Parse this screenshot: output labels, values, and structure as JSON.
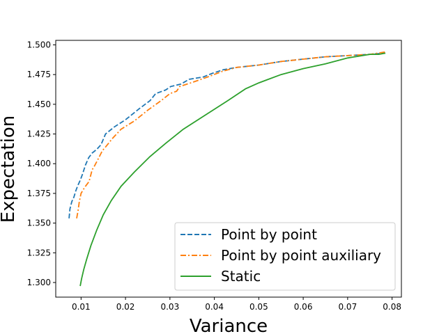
{
  "chart_data": {
    "type": "line",
    "title": "",
    "xlabel": "Variance",
    "ylabel": "Expectation",
    "xlim": [
      0.0043,
      0.0821
    ],
    "ylim": [
      1.2877,
      1.5038
    ],
    "xticks": [
      0.01,
      0.02,
      0.03,
      0.04,
      0.05,
      0.06,
      0.07,
      0.08
    ],
    "xtick_labels": [
      "0.01",
      "0.02",
      "0.03",
      "0.04",
      "0.05",
      "0.06",
      "0.07",
      "0.08"
    ],
    "yticks": [
      1.3,
      1.325,
      1.35,
      1.375,
      1.4,
      1.425,
      1.45,
      1.475,
      1.5
    ],
    "ytick_labels": [
      "1.300",
      "1.325",
      "1.350",
      "1.375",
      "1.400",
      "1.425",
      "1.450",
      "1.475",
      "1.500"
    ],
    "grid": false,
    "legend_position": "bottom-right",
    "series": [
      {
        "name": "Point by point",
        "color": "#1f77b4",
        "style": "dashed",
        "points": [
          [
            0.0073,
            1.354
          ],
          [
            0.0075,
            1.362
          ],
          [
            0.0079,
            1.368
          ],
          [
            0.0084,
            1.372
          ],
          [
            0.0088,
            1.377
          ],
          [
            0.0092,
            1.381
          ],
          [
            0.0098,
            1.386
          ],
          [
            0.0103,
            1.391
          ],
          [
            0.011,
            1.399
          ],
          [
            0.0117,
            1.405
          ],
          [
            0.0125,
            1.409
          ],
          [
            0.0135,
            1.412
          ],
          [
            0.0145,
            1.416
          ],
          [
            0.0155,
            1.425
          ],
          [
            0.0175,
            1.431
          ],
          [
            0.02,
            1.437
          ],
          [
            0.023,
            1.446
          ],
          [
            0.0255,
            1.453
          ],
          [
            0.0268,
            1.459
          ],
          [
            0.029,
            1.462
          ],
          [
            0.0302,
            1.465
          ],
          [
            0.0325,
            1.467
          ],
          [
            0.0343,
            1.471
          ],
          [
            0.0375,
            1.473
          ],
          [
            0.0395,
            1.476
          ],
          [
            0.042,
            1.479
          ],
          [
            0.045,
            1.481
          ],
          [
            0.05,
            1.483
          ],
          [
            0.055,
            1.486
          ],
          [
            0.06,
            1.488
          ],
          [
            0.065,
            1.49
          ],
          [
            0.07,
            1.491
          ],
          [
            0.075,
            1.492
          ],
          [
            0.0785,
            1.493
          ]
        ]
      },
      {
        "name": "Point by point auxiliary",
        "color": "#ff7f0e",
        "style": "dashdot",
        "points": [
          [
            0.009,
            1.354
          ],
          [
            0.0093,
            1.36
          ],
          [
            0.0096,
            1.368
          ],
          [
            0.01,
            1.375
          ],
          [
            0.0108,
            1.38
          ],
          [
            0.0118,
            1.385
          ],
          [
            0.0125,
            1.395
          ],
          [
            0.013,
            1.398
          ],
          [
            0.014,
            1.405
          ],
          [
            0.0148,
            1.411
          ],
          [
            0.0155,
            1.414
          ],
          [
            0.017,
            1.421
          ],
          [
            0.019,
            1.429
          ],
          [
            0.022,
            1.436
          ],
          [
            0.025,
            1.445
          ],
          [
            0.028,
            1.453
          ],
          [
            0.03,
            1.459
          ],
          [
            0.0315,
            1.461
          ],
          [
            0.0322,
            1.465
          ],
          [
            0.0355,
            1.469
          ],
          [
            0.0385,
            1.473
          ],
          [
            0.042,
            1.478
          ],
          [
            0.045,
            1.481
          ],
          [
            0.05,
            1.483
          ],
          [
            0.055,
            1.486
          ],
          [
            0.06,
            1.488
          ],
          [
            0.065,
            1.49
          ],
          [
            0.07,
            1.491
          ],
          [
            0.075,
            1.492
          ],
          [
            0.0785,
            1.494
          ]
        ]
      },
      {
        "name": "Static",
        "color": "#2ca02c",
        "style": "solid",
        "points": [
          [
            0.0098,
            1.297
          ],
          [
            0.0101,
            1.303
          ],
          [
            0.0106,
            1.311
          ],
          [
            0.0113,
            1.32
          ],
          [
            0.0122,
            1.331
          ],
          [
            0.0135,
            1.344
          ],
          [
            0.015,
            1.357
          ],
          [
            0.0168,
            1.369
          ],
          [
            0.019,
            1.381
          ],
          [
            0.022,
            1.393
          ],
          [
            0.0255,
            1.406
          ],
          [
            0.029,
            1.417
          ],
          [
            0.033,
            1.429
          ],
          [
            0.038,
            1.441
          ],
          [
            0.043,
            1.453
          ],
          [
            0.047,
            1.463
          ],
          [
            0.05,
            1.468
          ],
          [
            0.055,
            1.475
          ],
          [
            0.06,
            1.48
          ],
          [
            0.065,
            1.484
          ],
          [
            0.07,
            1.489
          ],
          [
            0.075,
            1.492
          ],
          [
            0.077,
            1.492
          ],
          [
            0.0785,
            1.493
          ]
        ]
      }
    ]
  }
}
